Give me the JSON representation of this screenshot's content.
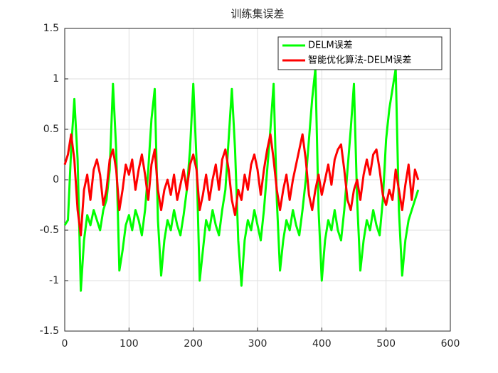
{
  "chart_data": {
    "type": "line",
    "title": "训练集误差",
    "x": [
      0,
      5,
      10,
      15,
      20,
      25,
      30,
      35,
      40,
      45,
      50,
      55,
      60,
      65,
      70,
      75,
      80,
      85,
      90,
      95,
      100,
      105,
      110,
      115,
      120,
      125,
      130,
      135,
      140,
      145,
      150,
      155,
      160,
      165,
      170,
      175,
      180,
      185,
      190,
      195,
      200,
      205,
      210,
      215,
      220,
      225,
      230,
      235,
      240,
      245,
      250,
      255,
      260,
      265,
      270,
      275,
      280,
      285,
      290,
      295,
      300,
      305,
      310,
      315,
      320,
      325,
      330,
      335,
      340,
      345,
      350,
      355,
      360,
      365,
      370,
      375,
      380,
      385,
      390,
      395,
      400,
      405,
      410,
      415,
      420,
      425,
      430,
      435,
      440,
      445,
      450,
      455,
      460,
      465,
      470,
      475,
      480,
      485,
      490,
      495,
      500,
      505,
      510,
      515,
      520,
      525,
      530,
      535,
      540,
      545,
      550
    ],
    "series": [
      {
        "name": "DELM误差",
        "color": "#00ff00",
        "values": [
          -0.45,
          -0.4,
          0.3,
          0.8,
          0.2,
          -1.1,
          -0.6,
          -0.35,
          -0.45,
          -0.3,
          -0.4,
          -0.5,
          -0.3,
          -0.2,
          0.1,
          0.95,
          0.3,
          -0.9,
          -0.7,
          -0.45,
          -0.35,
          -0.5,
          -0.3,
          -0.4,
          -0.55,
          -0.3,
          0.1,
          0.6,
          0.9,
          -0.4,
          -0.95,
          -0.6,
          -0.4,
          -0.5,
          -0.3,
          -0.45,
          -0.55,
          -0.35,
          -0.1,
          0.3,
          0.95,
          0.2,
          -1.0,
          -0.7,
          -0.4,
          -0.5,
          -0.3,
          -0.45,
          -0.55,
          -0.3,
          -0.1,
          0.4,
          0.9,
          0.3,
          -0.6,
          -1.05,
          -0.6,
          -0.4,
          -0.5,
          -0.3,
          -0.45,
          -0.6,
          -0.3,
          0.1,
          0.5,
          0.95,
          -0.2,
          -0.9,
          -0.6,
          -0.4,
          -0.5,
          -0.3,
          -0.45,
          -0.55,
          -0.3,
          0.0,
          0.4,
          0.8,
          1.1,
          -0.3,
          -1.0,
          -0.6,
          -0.4,
          -0.5,
          -0.3,
          -0.5,
          -0.6,
          -0.3,
          0.1,
          0.5,
          0.95,
          -0.2,
          -0.9,
          -0.6,
          -0.4,
          -0.5,
          -0.3,
          -0.45,
          -0.55,
          -0.2,
          0.4,
          0.7,
          0.9,
          1.1,
          -0.3,
          -0.95,
          -0.6,
          -0.4,
          -0.3,
          -0.2,
          -0.1
        ]
      },
      {
        "name": "智能优化算法-DELM误差",
        "color": "#ff0000",
        "values": [
          0.15,
          0.25,
          0.45,
          0.2,
          -0.3,
          -0.55,
          -0.1,
          0.05,
          -0.2,
          0.1,
          0.2,
          0.05,
          -0.25,
          -0.1,
          0.2,
          0.3,
          0.1,
          -0.3,
          -0.1,
          0.15,
          0.05,
          0.2,
          -0.1,
          0.1,
          0.25,
          0.05,
          -0.2,
          0.15,
          0.3,
          -0.1,
          -0.3,
          -0.1,
          0.0,
          -0.15,
          0.05,
          -0.2,
          -0.05,
          0.1,
          -0.1,
          0.15,
          0.25,
          0.1,
          -0.3,
          -0.15,
          0.05,
          -0.2,
          0.0,
          0.15,
          -0.1,
          0.2,
          0.3,
          0.1,
          -0.2,
          -0.35,
          -0.1,
          -0.2,
          0.05,
          -0.1,
          0.15,
          0.25,
          0.1,
          -0.15,
          0.1,
          0.3,
          0.45,
          0.2,
          -0.1,
          -0.3,
          -0.1,
          0.05,
          -0.2,
          0.0,
          0.15,
          0.3,
          0.45,
          0.2,
          -0.15,
          -0.3,
          -0.1,
          0.05,
          -0.15,
          0.0,
          0.15,
          -0.05,
          0.2,
          0.3,
          0.35,
          0.1,
          -0.2,
          -0.3,
          -0.1,
          0.0,
          -0.2,
          0.05,
          0.2,
          0.05,
          0.25,
          0.3,
          0.1,
          -0.15,
          -0.25,
          -0.1,
          -0.2,
          0.1,
          -0.1,
          -0.3,
          -0.05,
          0.15,
          -0.2,
          0.1,
          0.0
        ]
      }
    ],
    "xlim": [
      0,
      600
    ],
    "xticks": [
      0,
      100,
      200,
      300,
      400,
      500,
      600
    ],
    "ylim": [
      -1.5,
      1.5
    ],
    "yticks": [
      -1.5,
      -1,
      -0.5,
      0,
      0.5,
      1,
      1.5
    ],
    "grid": true,
    "legend": "northeast"
  }
}
